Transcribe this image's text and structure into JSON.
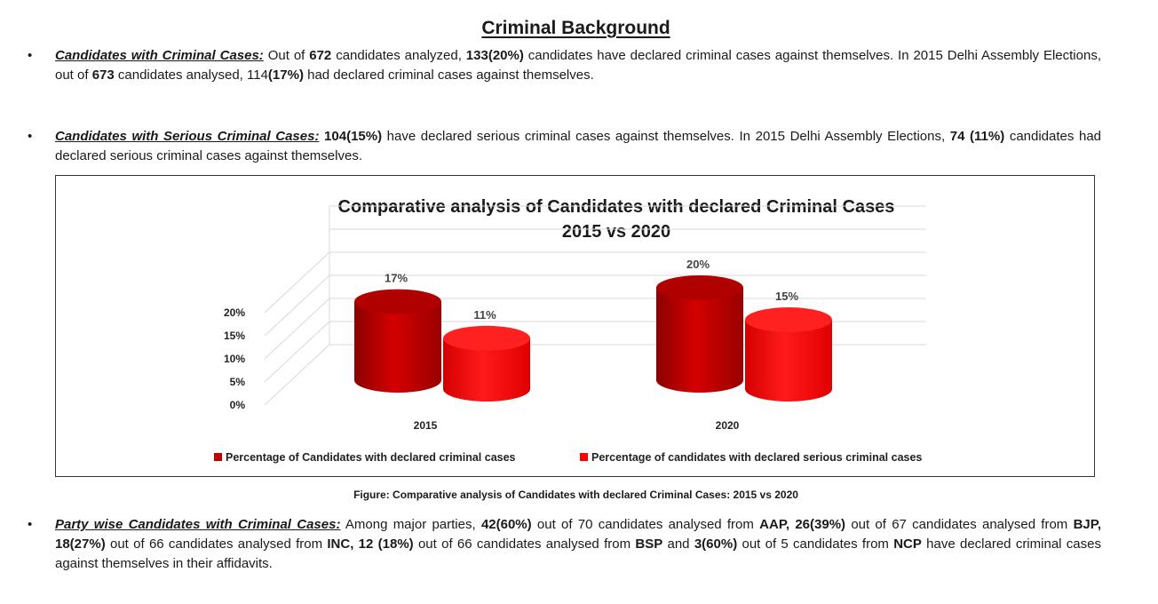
{
  "heading": "Criminal Background",
  "bullets": [
    {
      "lead": "Candidates with Criminal Cases:",
      "parts": [
        {
          "t": " Out of ",
          "b": false
        },
        {
          "t": "672",
          "b": true
        },
        {
          "t": " candidates analyzed, ",
          "b": false
        },
        {
          "t": "133(20%)",
          "b": true
        },
        {
          "t": " candidates have declared criminal cases against themselves. In 2015 Delhi Assembly Elections, out of ",
          "b": false
        },
        {
          "t": "673",
          "b": true
        },
        {
          "t": " candidates analysed, 114",
          "b": false
        },
        {
          "t": "(17%)",
          "b": true
        },
        {
          "t": " had declared criminal cases against themselves.",
          "b": false
        }
      ]
    },
    {
      "lead": "Candidates with Serious Criminal Cases:",
      "parts": [
        {
          "t": " ",
          "b": false
        },
        {
          "t": "104(15%)",
          "b": true
        },
        {
          "t": " have declared serious criminal cases against themselves. In 2015 Delhi Assembly Elections, ",
          "b": false
        },
        {
          "t": "74 (11%)",
          "b": true
        },
        {
          "t": " candidates had declared serious criminal cases against themselves.",
          "b": false
        }
      ]
    },
    {
      "lead": "Party wise Candidates with Criminal Cases:",
      "parts": [
        {
          "t": " Among major parties, ",
          "b": false
        },
        {
          "t": "42(60%)",
          "b": true
        },
        {
          "t": " out of 70 candidates analysed from ",
          "b": false
        },
        {
          "t": "AAP, 26(39%)",
          "b": true
        },
        {
          "t": " out of 67 candidates analysed from ",
          "b": false
        },
        {
          "t": "BJP, 18(27%)",
          "b": true
        },
        {
          "t": " out of 66 candidates analysed from ",
          "b": false
        },
        {
          "t": "INC, 12 (18%)",
          "b": true
        },
        {
          "t": " out of 66 candidates analysed from ",
          "b": false
        },
        {
          "t": "BSP",
          "b": true
        },
        {
          "t": " and ",
          "b": false
        },
        {
          "t": "3(60%)",
          "b": true
        },
        {
          "t": " out of 5 candidates from ",
          "b": false
        },
        {
          "t": "NCP",
          "b": true
        },
        {
          "t": " have declared criminal cases against themselves in their affidavits.",
          "b": false
        }
      ]
    }
  ],
  "caption": "Figure: Comparative analysis of Candidates with declared Criminal Cases: 2015 vs 2020",
  "chart_data": {
    "type": "bar",
    "title": "Comparative analysis of Candidates with declared Criminal Cases",
    "subtitle": "2015 vs 2020",
    "categories": [
      "2015",
      "2020"
    ],
    "series": [
      {
        "name": "Percentage of Candidates with declared criminal cases",
        "values": [
          17,
          20
        ],
        "labels": [
          "17%",
          "20%"
        ],
        "color": "#c00000"
      },
      {
        "name": "Percentage of candidates with declared serious criminal cases",
        "values": [
          11,
          15
        ],
        "labels": [
          "11%",
          "15%"
        ],
        "color": "#ff0000"
      }
    ],
    "y_ticks": [
      "0%",
      "5%",
      "10%",
      "15%",
      "20%"
    ],
    "ylim": [
      0,
      20
    ],
    "grid": true,
    "legend_position": "bottom",
    "style": "3d-cylinder"
  }
}
